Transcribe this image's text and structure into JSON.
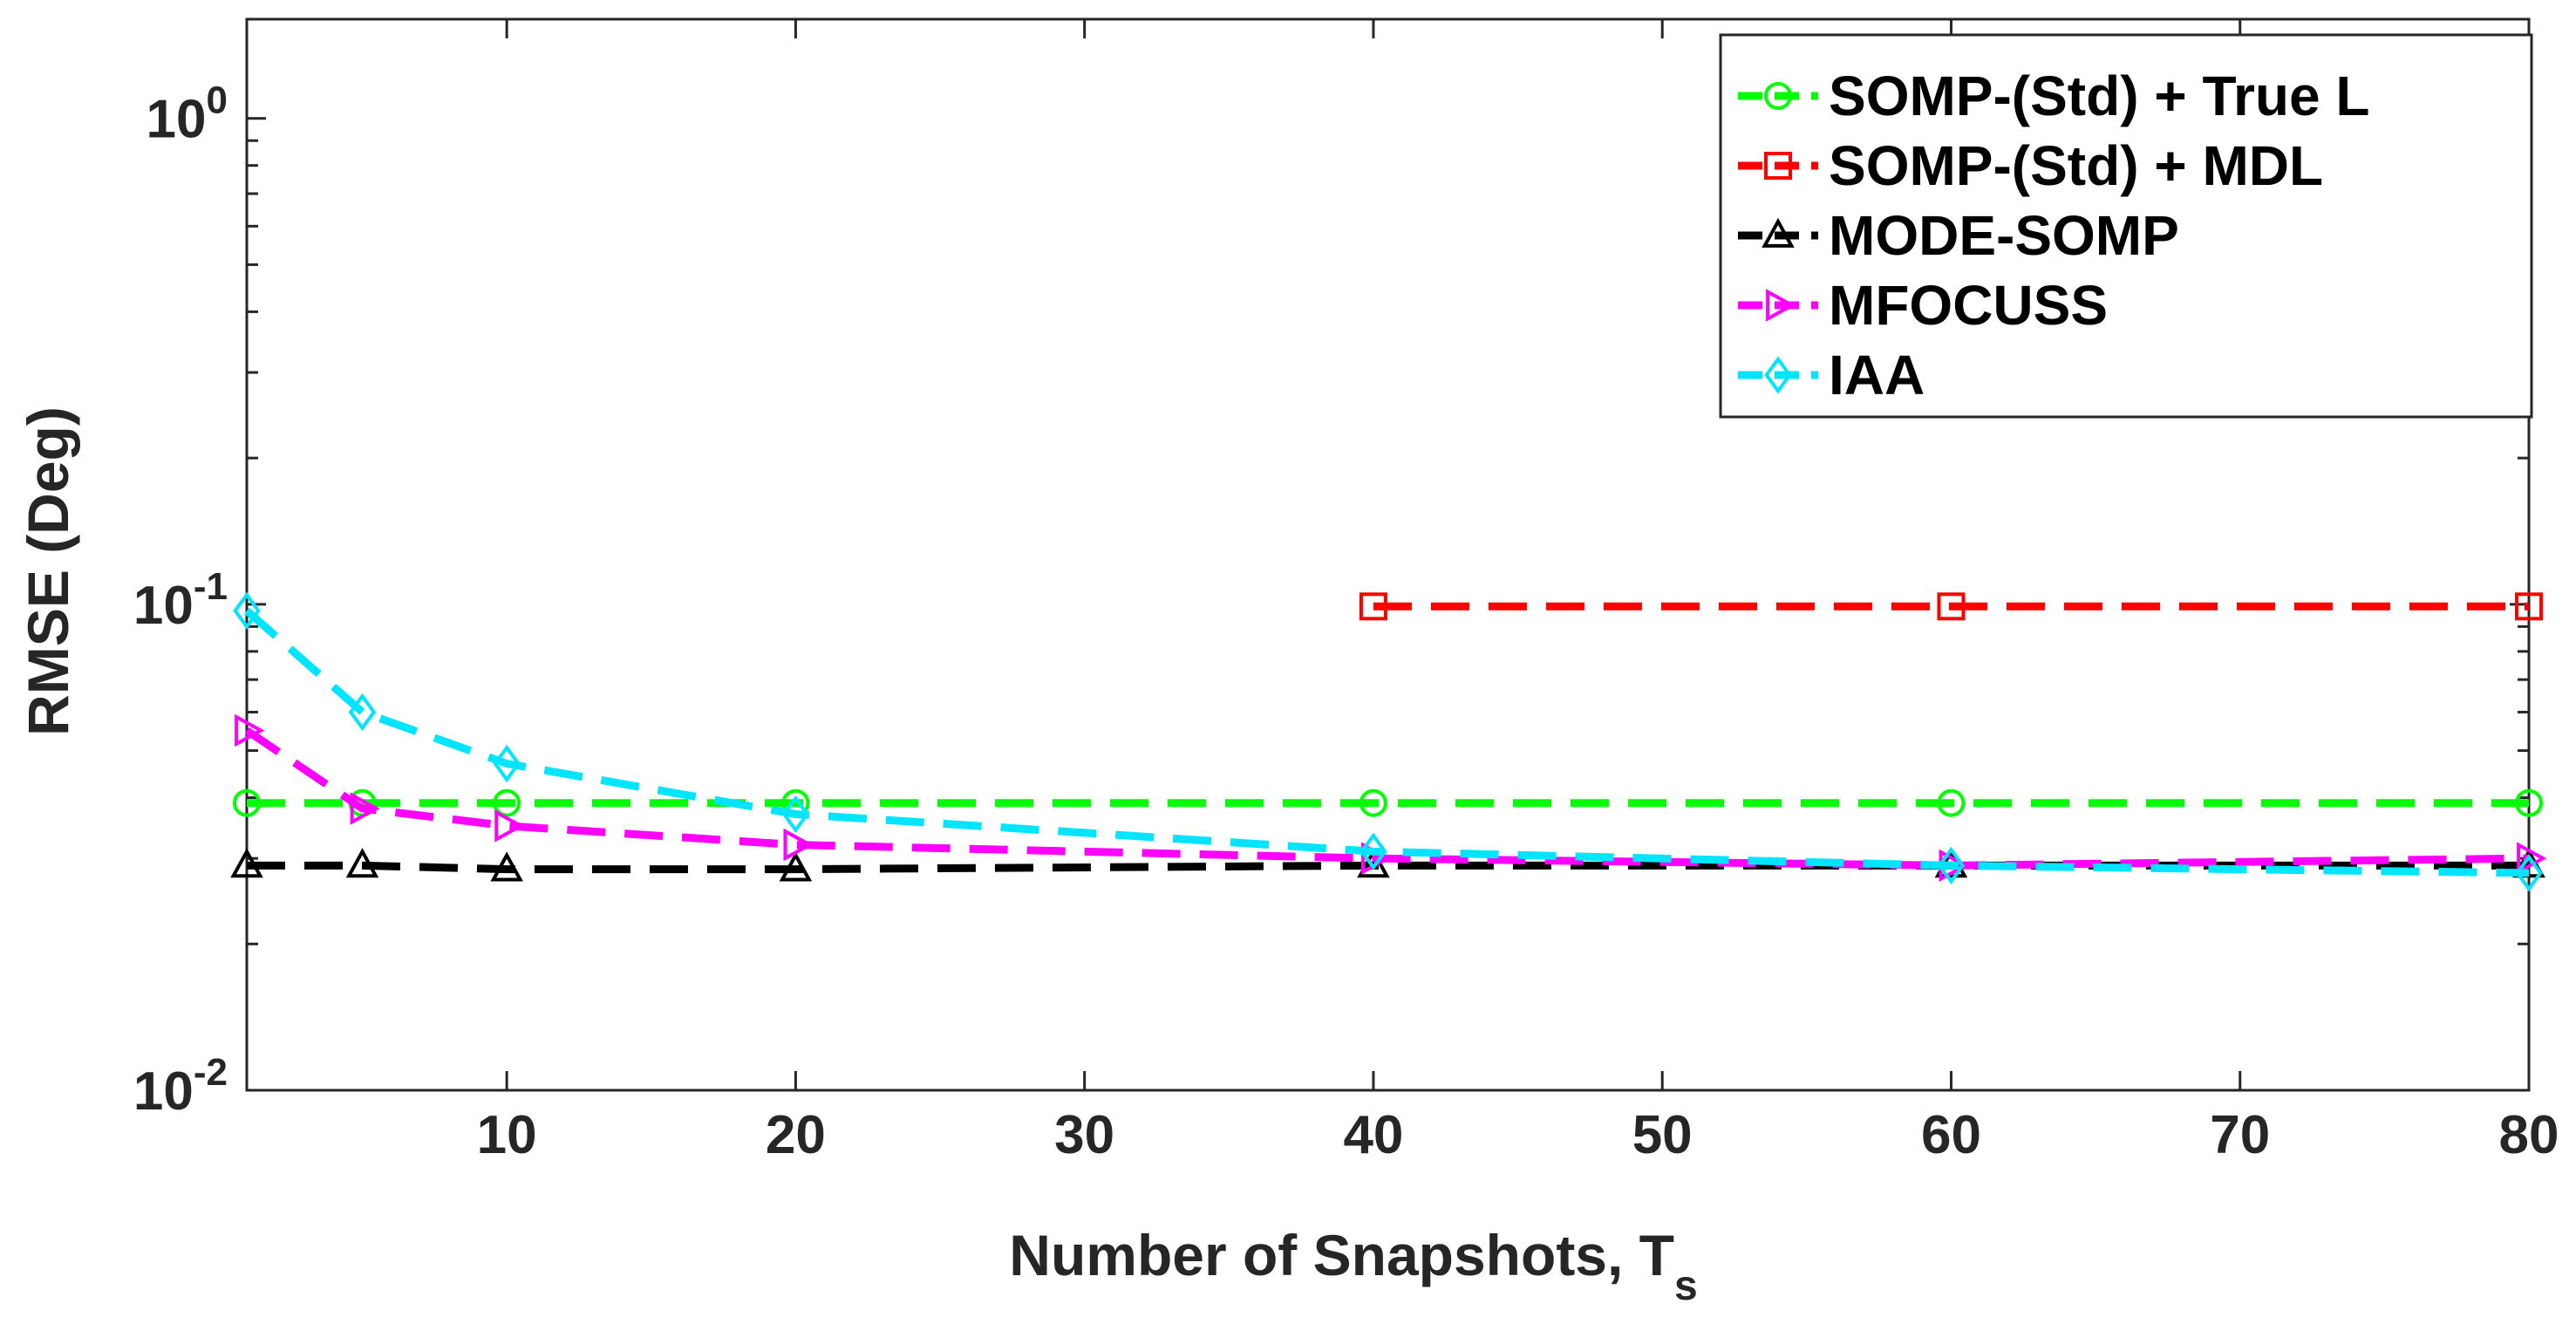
{
  "chart_data": {
    "type": "line",
    "title": "",
    "xlabel": "Number of Snapshots, T",
    "xlabel_subscript": "s",
    "ylabel": "RMSE (Deg)",
    "yscale": "log",
    "xlim": [
      1,
      80
    ],
    "ylim": [
      0.01,
      1.6
    ],
    "xticks": [
      10,
      20,
      30,
      40,
      50,
      60,
      70,
      80
    ],
    "xtick_labels": [
      "10",
      "20",
      "30",
      "40",
      "50",
      "60",
      "70",
      "80"
    ],
    "yticks": [
      {
        "base": "10",
        "exp": "0",
        "value": 1
      },
      {
        "base": "10",
        "exp": "-1",
        "value": 0.1
      },
      {
        "base": "10",
        "exp": "-2",
        "value": 0.01
      }
    ],
    "grid": false,
    "legend_position": "top-right",
    "series": [
      {
        "name": "SOMP-(Std) + True L",
        "color": "#00ff00",
        "marker": "circle",
        "x": [
          1,
          5,
          10,
          20,
          40,
          60,
          80
        ],
        "values": [
          0.039,
          0.039,
          0.039,
          0.039,
          0.039,
          0.039,
          0.039
        ]
      },
      {
        "name": "SOMP-(Std) + MDL",
        "color": "#ff0000",
        "marker": "square",
        "x": [
          40,
          60,
          80
        ],
        "values": [
          0.099,
          0.099,
          0.099
        ]
      },
      {
        "name": "MODE-SOMP",
        "color": "#000000",
        "marker": "triangle-up",
        "x": [
          1,
          5,
          10,
          20,
          40,
          60,
          80
        ],
        "values": [
          0.029,
          0.029,
          0.0285,
          0.0285,
          0.029,
          0.029,
          0.029
        ]
      },
      {
        "name": "MFOCUSS",
        "color": "#ff00ff",
        "marker": "triangle-right",
        "x": [
          1,
          5,
          10,
          20,
          40,
          60,
          80
        ],
        "values": [
          0.055,
          0.038,
          0.035,
          0.032,
          0.03,
          0.029,
          0.03
        ]
      },
      {
        "name": "IAA",
        "color": "#00e5ff",
        "marker": "diamond",
        "x": [
          1,
          5,
          10,
          20,
          40,
          60,
          80
        ],
        "values": [
          0.097,
          0.06,
          0.047,
          0.037,
          0.031,
          0.029,
          0.028
        ]
      }
    ]
  }
}
